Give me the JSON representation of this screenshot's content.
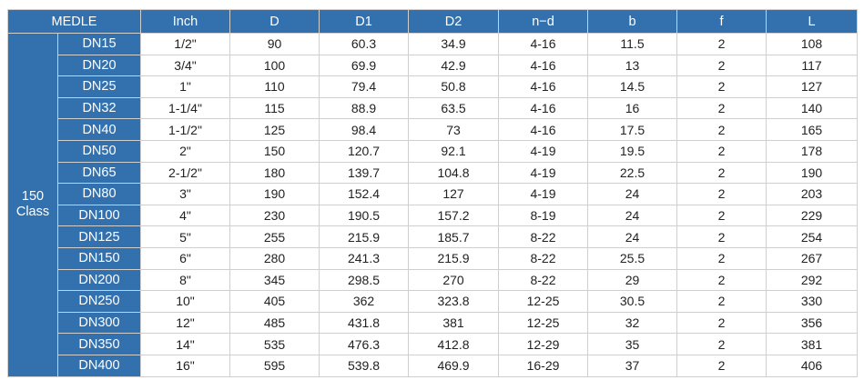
{
  "table": {
    "headers": [
      "MEDLE",
      "Inch",
      "D",
      "D1",
      "D2",
      "n−d",
      "b",
      "f",
      "L"
    ],
    "class_label": [
      "150",
      "Class"
    ],
    "rows": [
      [
        "DN15",
        "1/2\"",
        "90",
        "60.3",
        "34.9",
        "4-16",
        "11.5",
        "2",
        "108"
      ],
      [
        "DN20",
        "3/4\"",
        "100",
        "69.9",
        "42.9",
        "4-16",
        "13",
        "2",
        "117"
      ],
      [
        "DN25",
        "1\"",
        "110",
        "79.4",
        "50.8",
        "4-16",
        "14.5",
        "2",
        "127"
      ],
      [
        "DN32",
        "1-1/4\"",
        "115",
        "88.9",
        "63.5",
        "4-16",
        "16",
        "2",
        "140"
      ],
      [
        "DN40",
        "1-1/2\"",
        "125",
        "98.4",
        "73",
        "4-16",
        "17.5",
        "2",
        "165"
      ],
      [
        "DN50",
        "2\"",
        "150",
        "120.7",
        "92.1",
        "4-19",
        "19.5",
        "2",
        "178"
      ],
      [
        "DN65",
        "2-1/2\"",
        "180",
        "139.7",
        "104.8",
        "4-19",
        "22.5",
        "2",
        "190"
      ],
      [
        "DN80",
        "3\"",
        "190",
        "152.4",
        "127",
        "4-19",
        "24",
        "2",
        "203"
      ],
      [
        "DN100",
        "4\"",
        "230",
        "190.5",
        "157.2",
        "8-19",
        "24",
        "2",
        "229"
      ],
      [
        "DN125",
        "5\"",
        "255",
        "215.9",
        "185.7",
        "8-22",
        "24",
        "2",
        "254"
      ],
      [
        "DN150",
        "6\"",
        "280",
        "241.3",
        "215.9",
        "8-22",
        "25.5",
        "2",
        "267"
      ],
      [
        "DN200",
        "8\"",
        "345",
        "298.5",
        "270",
        "8-22",
        "29",
        "2",
        "292"
      ],
      [
        "DN250",
        "10\"",
        "405",
        "362",
        "323.8",
        "12-25",
        "30.5",
        "2",
        "330"
      ],
      [
        "DN300",
        "12\"",
        "485",
        "431.8",
        "381",
        "12-25",
        "32",
        "2",
        "356"
      ],
      [
        "DN350",
        "14\"",
        "535",
        "476.3",
        "412.8",
        "12-29",
        "35",
        "2",
        "381"
      ],
      [
        "DN400",
        "16\"",
        "595",
        "539.8",
        "469.9",
        "16-29",
        "37",
        "2",
        "406"
      ]
    ]
  },
  "colors": {
    "header_bg": "#3370ae",
    "border": "#cfcfcf"
  }
}
